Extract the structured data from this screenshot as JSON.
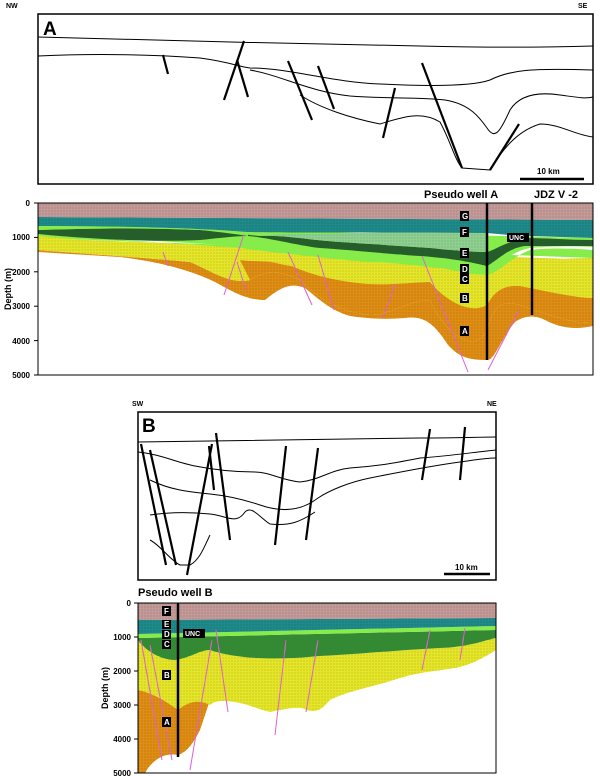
{
  "figure_a": {
    "label": "A",
    "left_direction": "NW",
    "right_direction": "SE",
    "scale_bar": "10 km",
    "well_labels": [
      "Pseudo well A",
      "JDZ V -2"
    ],
    "depth_axis_label": "Depth (m)",
    "depth_ticks": [
      "0",
      "1000",
      "2000",
      "3000",
      "4000",
      "5000"
    ],
    "layers": [
      "G",
      "F",
      "E",
      "D",
      "C",
      "B",
      "A"
    ],
    "unconformity_label": "UNC"
  },
  "figure_b": {
    "label": "B",
    "left_direction": "SW",
    "right_direction": "NE",
    "scale_bar": "10 km",
    "well_label": "Pseudo well B",
    "depth_axis_label": "Depth (m)",
    "depth_ticks": [
      "0",
      "1000",
      "2000",
      "3000",
      "4000",
      "5000"
    ],
    "layers": [
      "F",
      "E",
      "D",
      "C",
      "B",
      "A"
    ],
    "unconformity_label": "UNC"
  },
  "colors": {
    "G": "#c49a98",
    "F": "#1e8a8a",
    "E": "#6ecf7a",
    "D": "#2a6a30",
    "C": "#86ec4a",
    "B": "#e6e628",
    "A": "#e08d14",
    "fault_pink": "#e060d0"
  }
}
